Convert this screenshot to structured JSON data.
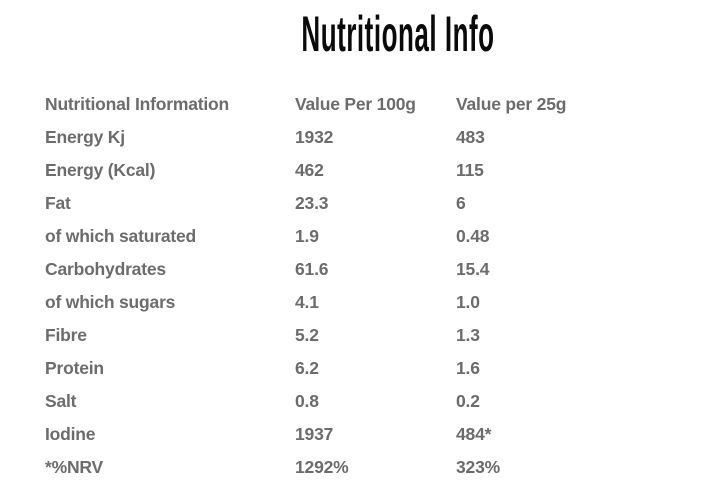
{
  "page": {
    "title": "Nutritional Info"
  },
  "colors": {
    "background": "#ffffff",
    "title_text": "#0a0a0a",
    "table_text": "#6c6c6c"
  },
  "table": {
    "columns": [
      "Nutritional Information",
      "Value Per 100g",
      "Value per 25g"
    ],
    "rows": [
      {
        "label": "Energy Kj",
        "per100g": "1932",
        "per25g": "483"
      },
      {
        "label": "Energy (Kcal)",
        "per100g": "462",
        "per25g": "115"
      },
      {
        "label": "Fat",
        "per100g": "23.3",
        "per25g": "6"
      },
      {
        "label": "of which saturated",
        "per100g": "1.9",
        "per25g": "0.48"
      },
      {
        "label": "Carbohydrates",
        "per100g": "61.6",
        "per25g": "15.4"
      },
      {
        "label": "of which sugars",
        "per100g": "4.1",
        "per25g": "1.0"
      },
      {
        "label": "Fibre",
        "per100g": "5.2",
        "per25g": "1.3"
      },
      {
        "label": "Protein",
        "per100g": "6.2",
        "per25g": "1.6"
      },
      {
        "label": "Salt",
        "per100g": "0.8",
        "per25g": "0.2"
      },
      {
        "label": "Iodine",
        "per100g": "1937",
        "per25g": "484*"
      },
      {
        "label": "*%NRV",
        "per100g": "1292%",
        "per25g": "323%"
      }
    ]
  }
}
